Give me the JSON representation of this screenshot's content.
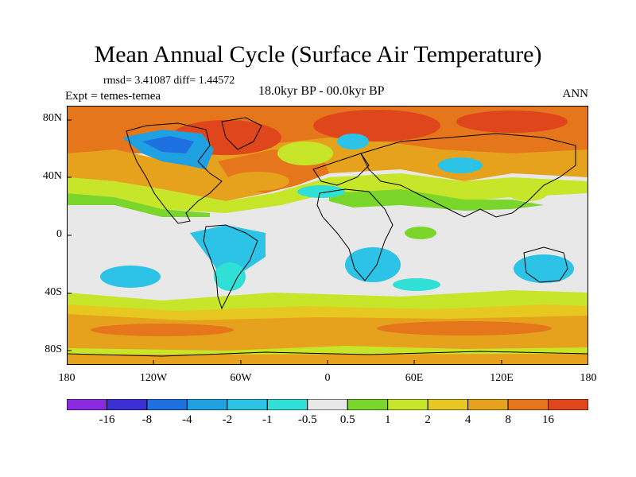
{
  "header": {
    "title": "Mean Annual Cycle (Surface Air Temperature)",
    "stats": "rmsd= 3.41087 diff= 1.44572",
    "experiment": "Expt = temes-temea",
    "period": "18.0kyr BP - 00.0kyr BP",
    "season": "ANN"
  },
  "axes": {
    "y_ticks": [
      "80N",
      "40N",
      "0",
      "40S",
      "80S"
    ],
    "x_ticks": [
      "180",
      "120W",
      "60W",
      "0",
      "60E",
      "120E",
      "180"
    ]
  },
  "colorbar": {
    "colors": [
      "#8a2be2",
      "#3b2fd6",
      "#1e6fe0",
      "#1fa0e0",
      "#2cc3e6",
      "#30e0d6",
      "#e8e8e8",
      "#7ad62a",
      "#c7e62a",
      "#e6c820",
      "#e6a21c",
      "#e6761c",
      "#e0461c"
    ],
    "labels": [
      "-16",
      "-8",
      "-4",
      "-2",
      "-1",
      "-0.5",
      "0.5",
      "1",
      "2",
      "4",
      "8",
      "16"
    ]
  }
}
